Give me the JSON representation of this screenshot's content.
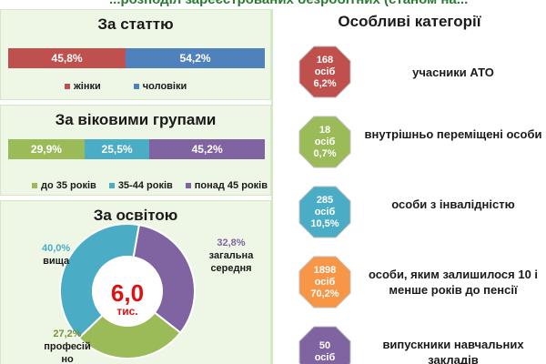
{
  "header": {
    "partial_title": "...розподіл зареєстрованих безробітних (станом на..."
  },
  "gender_panel": {
    "title": "За статтю"
  },
  "age_panel": {
    "title": "За віковими групами"
  },
  "education_panel": {
    "title": "За освітою",
    "center_value": "6,0",
    "center_unit": "тис."
  },
  "categories_panel": {
    "title": "Особливі категорії",
    "items": [
      {
        "count": "168",
        "unit": "осіб",
        "percent": "6,2%",
        "label": "учасники АТО",
        "color": "#c0504d"
      },
      {
        "count": "18",
        "unit": "осіб",
        "percent": "0,7%",
        "label": "внутрішньо переміщені особи",
        "color": "#9bbb59"
      },
      {
        "count": "285",
        "unit": "осіб",
        "percent": "10,5%",
        "label": "особи з інвалідністю",
        "color": "#4bacc6"
      },
      {
        "count": "1898",
        "unit": "осіб",
        "percent": "70,2%",
        "label": "особи, яким залишилося 10 і менше років до пенсії",
        "color": "#f79646"
      },
      {
        "count": "50",
        "unit": "осіб",
        "percent": "",
        "label": "випускники навчальних закладів",
        "color": "#8064a2"
      }
    ]
  },
  "chart_data": [
    {
      "type": "bar",
      "title": "За статтю",
      "orientation": "horizontal-stacked-100",
      "series": [
        {
          "name": "жінки",
          "value": 45.8,
          "label": "45,8%",
          "color": "#c0504d"
        },
        {
          "name": "чоловіки",
          "value": 54.2,
          "label": "54,2%",
          "color": "#4f81bd"
        }
      ],
      "legend": "bottom"
    },
    {
      "type": "bar",
      "title": "За віковими групами",
      "orientation": "horizontal-stacked-100",
      "series": [
        {
          "name": "до 35 років",
          "value": 29.9,
          "label": "29,9%",
          "color": "#9bbb59"
        },
        {
          "name": "35-44 років",
          "value": 25.5,
          "label": "25,5%",
          "color": "#4bacc6"
        },
        {
          "name": "понад 45 років",
          "value": 45.2,
          "label": "45,2%",
          "color": "#8064a2"
        }
      ],
      "legend": "bottom"
    },
    {
      "type": "pie",
      "title": "За освітою",
      "donut": true,
      "slices": [
        {
          "name": "загальна середня",
          "value": 32.8,
          "label": "32,8%",
          "color": "#8064a2"
        },
        {
          "name": "професійно-технічна",
          "visible_name": "професій но",
          "value": 27.2,
          "label": "27,2%",
          "color": "#9bbb59"
        },
        {
          "name": "вища",
          "value": 40.0,
          "label": "40,0%",
          "color": "#4bacc6"
        }
      ]
    }
  ]
}
